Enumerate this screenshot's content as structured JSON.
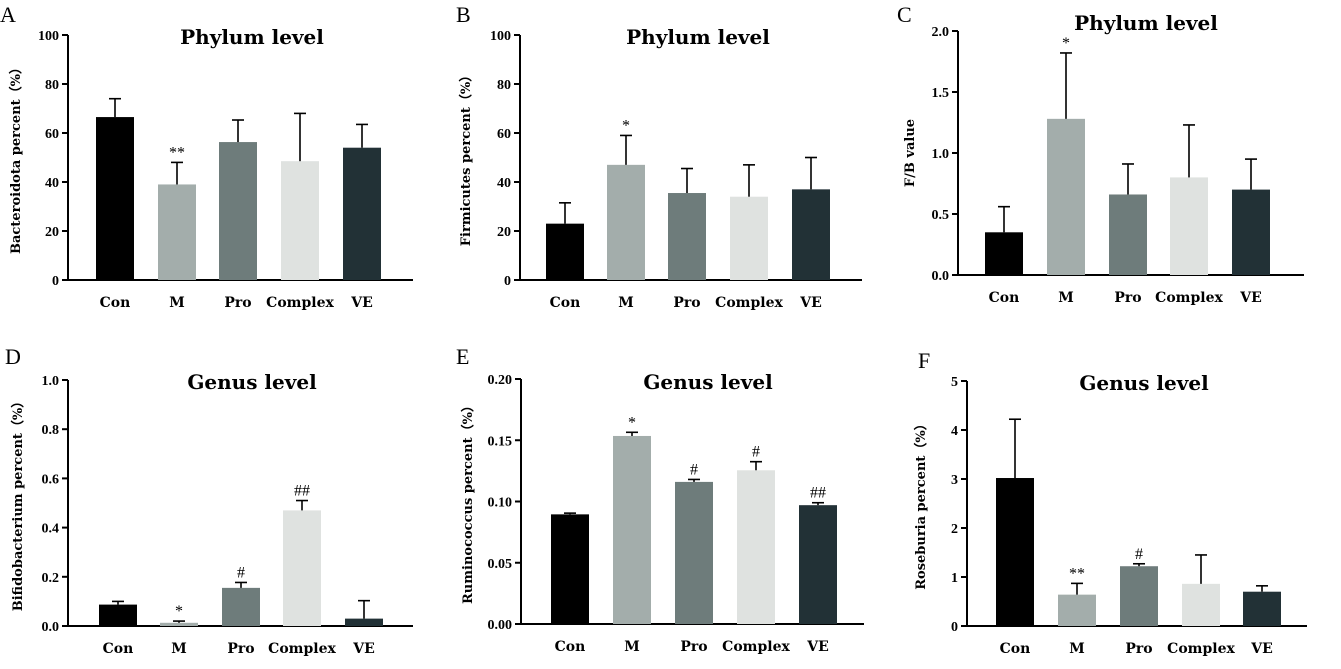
{
  "colors": {
    "Con": "#000000",
    "M": "#a3adab",
    "Pro": "#6e7c7b",
    "Complex": "#dfe2e0",
    "VE": "#223136"
  },
  "chart_data": [
    {
      "panel": "A",
      "type": "bar",
      "title": "Phylum level",
      "ylabel": "Bacteroidota  percent（%）",
      "categories": [
        "Con",
        "M",
        "Pro",
        "Complex",
        "VE"
      ],
      "values": [
        66.5,
        39,
        56.3,
        48.5,
        54
      ],
      "errors": [
        7.5,
        9,
        9,
        19.5,
        9.5
      ],
      "annotations": [
        "",
        "**",
        "",
        "",
        ""
      ],
      "ylim": [
        0,
        100
      ],
      "yticks": [
        "0",
        "20",
        "40",
        "60",
        "80",
        "100"
      ],
      "ytick_values": [
        0,
        20,
        40,
        60,
        80,
        100
      ]
    },
    {
      "panel": "B",
      "type": "bar",
      "title": "Phylum level",
      "ylabel": "Firmicutes  percent（%）",
      "categories": [
        "Con",
        "M",
        "Pro",
        "Complex",
        "VE"
      ],
      "values": [
        23,
        47,
        35.5,
        34,
        37
      ],
      "errors": [
        8.5,
        12,
        10,
        13,
        13
      ],
      "annotations": [
        "",
        "*",
        "",
        "",
        ""
      ],
      "ylim": [
        0,
        100
      ],
      "yticks": [
        "0",
        "20",
        "40",
        "60",
        "80",
        "100"
      ],
      "ytick_values": [
        0,
        20,
        40,
        60,
        80,
        100
      ]
    },
    {
      "panel": "C",
      "type": "bar",
      "title": "Phylum level",
      "ylabel": "F/B  value",
      "categories": [
        "Con",
        "M",
        "Pro",
        "Complex",
        "VE"
      ],
      "values": [
        0.35,
        1.28,
        0.66,
        0.8,
        0.7
      ],
      "errors": [
        0.21,
        0.54,
        0.25,
        0.43,
        0.25
      ],
      "annotations": [
        "",
        "*",
        "",
        "",
        ""
      ],
      "ylim": [
        0,
        2.0
      ],
      "yticks": [
        "0.0",
        "0.5",
        "1.0",
        "1.5",
        "2.0"
      ],
      "ytick_values": [
        0,
        0.5,
        1.0,
        1.5,
        2.0
      ]
    },
    {
      "panel": "D",
      "type": "bar",
      "title": "Genus level",
      "ylabel": "Bifidobacterium  percent（%）",
      "categories": [
        "Con",
        "M",
        "Pro",
        "Complex",
        "VE"
      ],
      "values": [
        0.087,
        0.013,
        0.155,
        0.47,
        0.03
      ],
      "errors": [
        0.013,
        0.007,
        0.022,
        0.04,
        0.073
      ],
      "annotations": [
        "",
        "*",
        "#",
        "##",
        ""
      ],
      "ylim": [
        0,
        1.0
      ],
      "yticks": [
        "0.0",
        "0.2",
        "0.4",
        "0.6",
        "0.8",
        "1.0"
      ],
      "ytick_values": [
        0,
        0.2,
        0.4,
        0.6,
        0.8,
        1.0
      ]
    },
    {
      "panel": "E",
      "type": "bar",
      "title": "Genus level",
      "ylabel": "Ruminococcus  percent（%）",
      "categories": [
        "Con",
        "M",
        "Pro",
        "Complex",
        "VE"
      ],
      "values": [
        0.0895,
        0.1535,
        0.116,
        0.1255,
        0.097
      ],
      "errors": [
        0.001,
        0.003,
        0.002,
        0.007,
        0.002
      ],
      "annotations": [
        "",
        "*",
        "#",
        "#",
        "##"
      ],
      "ylim": [
        0,
        0.2
      ],
      "yticks": [
        "0.00",
        "0.05",
        "0.10",
        "0.15",
        "0.20"
      ],
      "ytick_values": [
        0,
        0.05,
        0.1,
        0.15,
        0.2
      ]
    },
    {
      "panel": "F",
      "type": "bar",
      "title": "Genus level",
      "ylabel": "Roseburia  percent（%）",
      "categories": [
        "Con",
        "M",
        "Pro",
        "Complex",
        "VE"
      ],
      "values": [
        3.02,
        0.64,
        1.22,
        0.86,
        0.7
      ],
      "errors": [
        1.2,
        0.23,
        0.05,
        0.59,
        0.12
      ],
      "annotations": [
        "",
        "**",
        "#",
        "",
        ""
      ],
      "ylim": [
        0,
        5
      ],
      "yticks": [
        "0",
        "1",
        "2",
        "3",
        "4",
        "5"
      ],
      "ytick_values": [
        0,
        1,
        2,
        3,
        4,
        5
      ]
    }
  ]
}
